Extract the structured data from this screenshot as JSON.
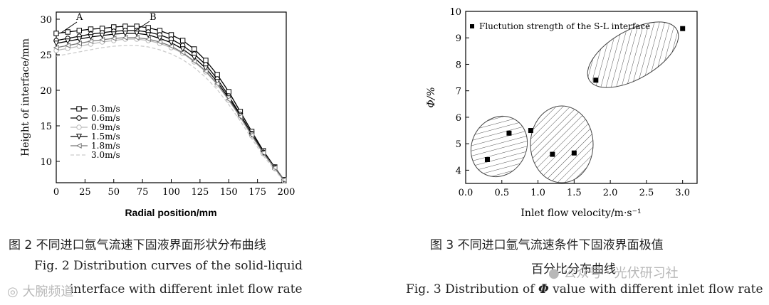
{
  "chart_data": [
    {
      "type": "line",
      "xlabel": "Radial position/mm",
      "ylabel": "Height of interface/mm",
      "xlim": [
        0,
        200
      ],
      "ylim": [
        7,
        31
      ],
      "x_ticks": [
        0,
        25,
        50,
        75,
        100,
        125,
        150,
        175,
        200
      ],
      "y_ticks": [
        10,
        15,
        20,
        25,
        30
      ],
      "legend": "left-middle",
      "annotations": [
        "A",
        "B"
      ],
      "x": [
        0,
        10,
        20,
        30,
        40,
        50,
        60,
        70,
        80,
        90,
        100,
        110,
        120,
        130,
        140,
        150,
        160,
        170,
        180,
        190,
        198
      ],
      "series": [
        {
          "name": "0.3m/s",
          "marker": "square",
          "color": "#000000",
          "values": [
            28.0,
            28.2,
            28.4,
            28.6,
            28.7,
            28.9,
            29.0,
            29.0,
            28.8,
            28.4,
            27.8,
            27.0,
            25.8,
            24.2,
            22.2,
            19.8,
            17.0,
            14.2,
            11.5,
            9.2,
            7.4
          ]
        },
        {
          "name": "0.6m/s",
          "marker": "circle",
          "color": "#000000",
          "values": [
            27.0,
            27.3,
            27.6,
            27.9,
            28.1,
            28.3,
            28.4,
            28.4,
            28.2,
            27.8,
            27.2,
            26.3,
            25.1,
            23.6,
            21.6,
            19.2,
            16.6,
            13.9,
            11.3,
            9.2,
            7.4
          ]
        },
        {
          "name": "0.9m/s",
          "marker": "circle",
          "color": "#bbbbbb",
          "values": [
            25.6,
            25.9,
            26.2,
            26.5,
            26.8,
            27.0,
            27.2,
            27.2,
            27.0,
            26.6,
            26.0,
            25.2,
            24.0,
            22.6,
            20.8,
            18.6,
            16.2,
            13.6,
            11.1,
            9.0,
            7.3
          ]
        },
        {
          "name": "1.5m/s",
          "marker": "triangle-down",
          "color": "#000000",
          "values": [
            26.6,
            26.9,
            27.2,
            27.5,
            27.7,
            27.9,
            28.0,
            28.0,
            27.8,
            27.3,
            26.7,
            25.8,
            24.6,
            23.1,
            21.2,
            18.9,
            16.4,
            13.8,
            11.2,
            9.1,
            7.4
          ]
        },
        {
          "name": "1.8m/s",
          "marker": "triangle-left",
          "color": "#777777",
          "values": [
            26.0,
            26.3,
            26.6,
            26.9,
            27.1,
            27.3,
            27.4,
            27.4,
            27.2,
            26.8,
            26.2,
            25.3,
            24.1,
            22.7,
            20.9,
            18.7,
            16.3,
            13.7,
            11.2,
            9.1,
            7.4
          ]
        },
        {
          "name": "3.0m/s",
          "marker": "none",
          "color": "#cccccc",
          "values": [
            24.8,
            25.1,
            25.4,
            25.7,
            26.0,
            26.2,
            26.3,
            26.3,
            26.1,
            25.7,
            25.1,
            24.3,
            23.2,
            21.8,
            20.1,
            18.0,
            15.7,
            13.2,
            10.8,
            8.8,
            7.2
          ]
        }
      ]
    },
    {
      "type": "scatter",
      "xlabel": "Inlet flow velocity/m·s⁻¹",
      "ylabel": "Φ/%",
      "xlim": [
        0,
        3.2
      ],
      "ylim": [
        3.5,
        10
      ],
      "x_ticks": [
        0.0,
        0.5,
        1.0,
        1.5,
        2.0,
        2.5,
        3.0
      ],
      "y_ticks": [
        4,
        5,
        6,
        7,
        8,
        9,
        10
      ],
      "legend": "top-left",
      "series": [
        {
          "name": "Fluctution strength of the S-L interface",
          "marker": "square",
          "color": "#000000",
          "points": [
            [
              0.3,
              4.4
            ],
            [
              0.6,
              5.4
            ],
            [
              0.9,
              5.5
            ],
            [
              1.2,
              4.6
            ],
            [
              1.5,
              4.65
            ],
            [
              1.8,
              7.4
            ],
            [
              3.0,
              9.35
            ]
          ]
        }
      ]
    }
  ],
  "captions": {
    "fig2_cn": "图 2    不同进口氩气流速下固液界面形状分布曲线",
    "fig2_en_line1": "Fig. 2    Distribution curves of the solid-liquid",
    "fig2_en_line2": "interface with different inlet flow rate",
    "fig3_cn_line1": "图 3    不同进口氩气流速条件下固液界面极值",
    "fig3_cn_line2": "百分比分布曲线",
    "fig3_en_prefix": "Fig. 3    Distribution of ",
    "fig3_en_symbol": "Φ",
    "fig3_en_suffix": " value with different inlet flow rate"
  },
  "watermarks": {
    "left": "大腕频道",
    "right": "公众号 · 光伏研习社"
  }
}
